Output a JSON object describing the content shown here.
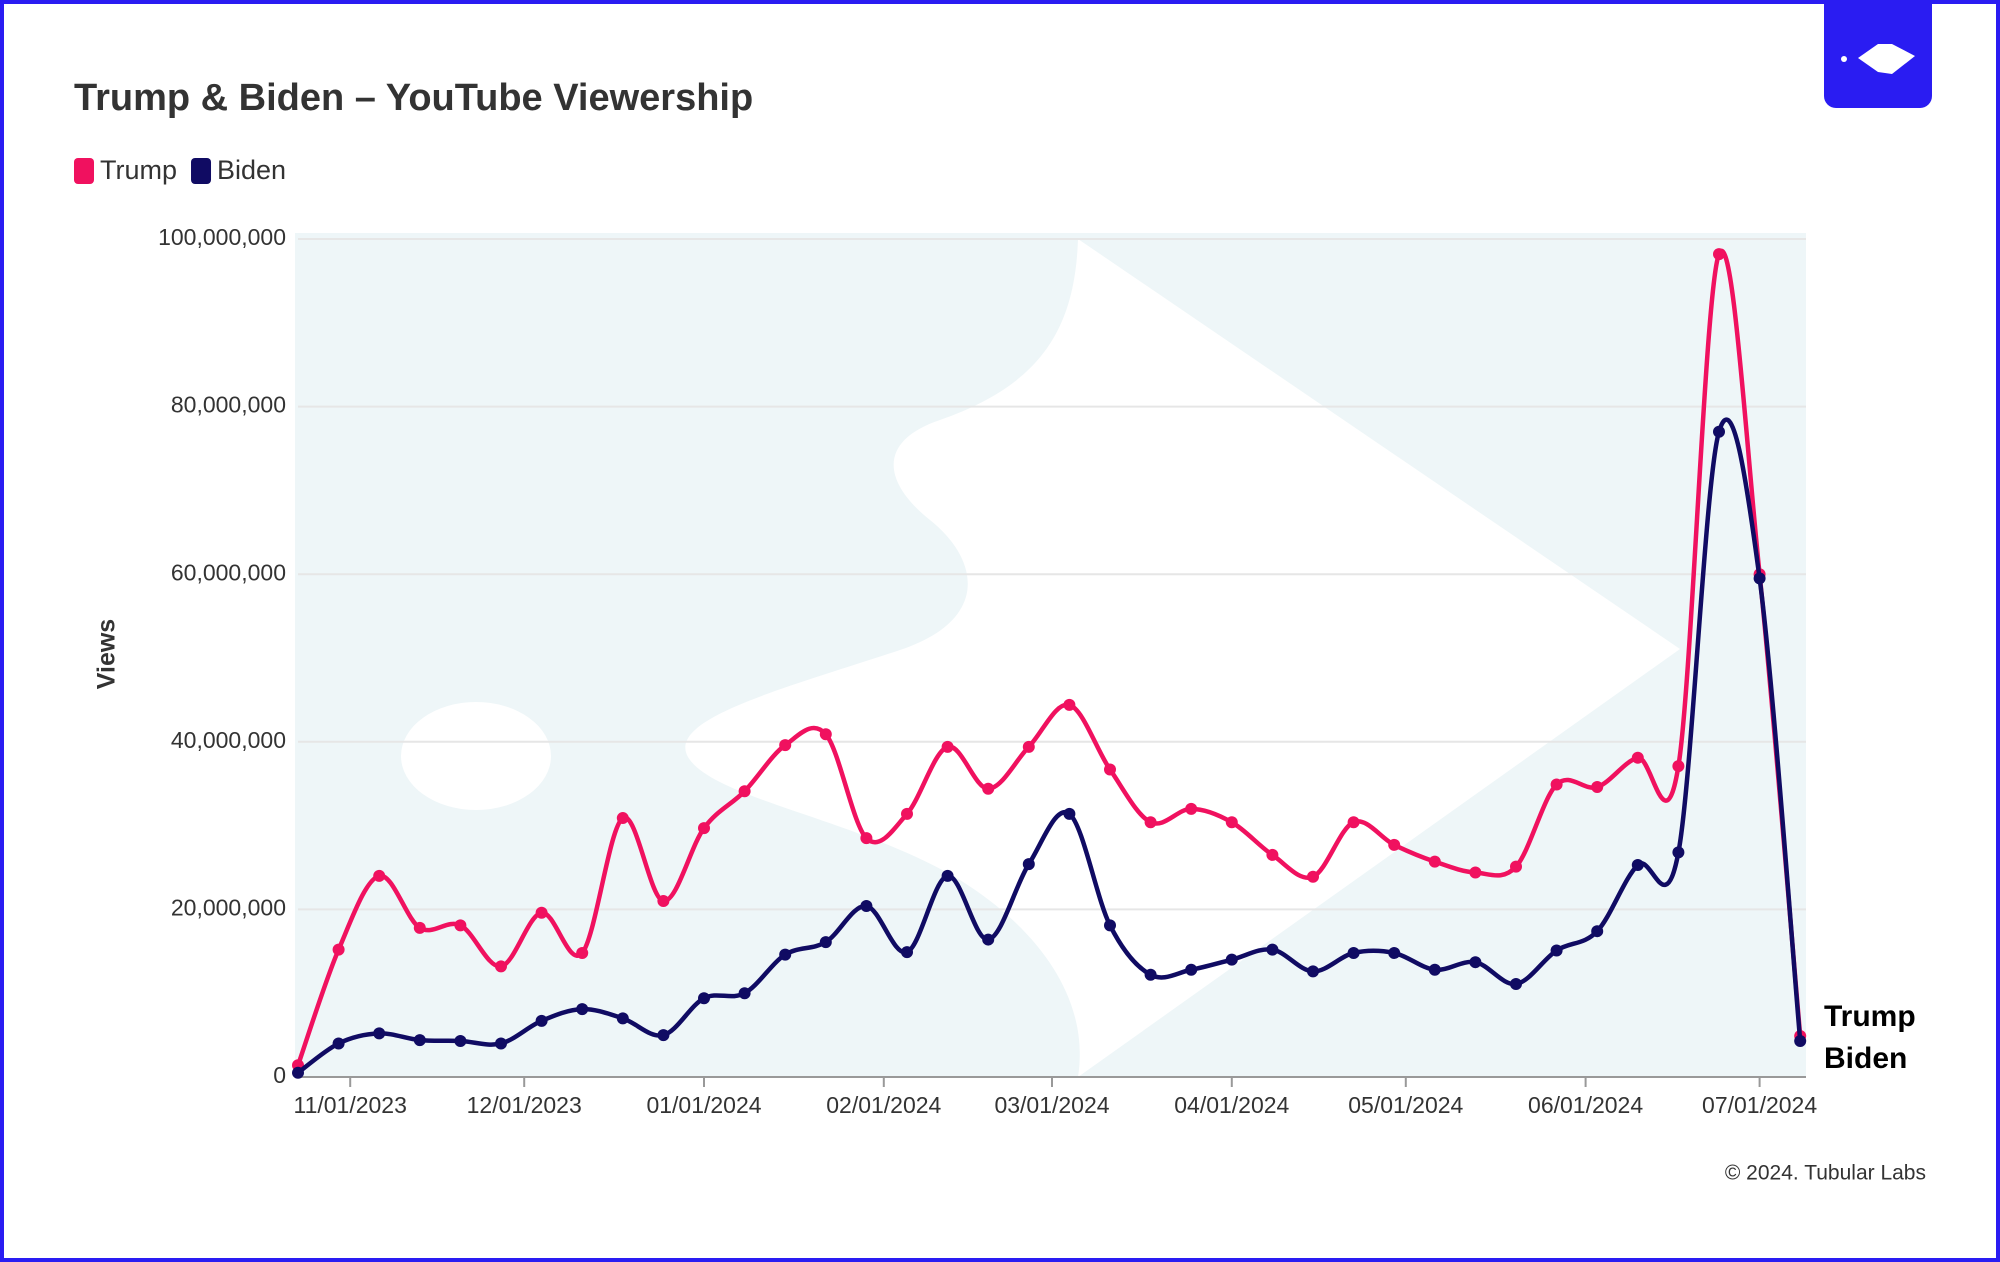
{
  "chart_data": {
    "type": "line",
    "title": "Trump & Biden – YouTube Viewership",
    "y_label": "Views",
    "footer": "© 2024. Tubular Labs",
    "x": [
      "10/23/2023",
      "10/30/2023",
      "11/06/2023",
      "11/13/2023",
      "11/20/2023",
      "11/27/2023",
      "12/04/2023",
      "12/11/2023",
      "12/18/2023",
      "12/25/2023",
      "01/01/2024",
      "01/08/2024",
      "01/15/2024",
      "01/22/2024",
      "01/29/2024",
      "02/05/2024",
      "02/12/2024",
      "02/19/2024",
      "02/26/2024",
      "03/04/2024",
      "03/11/2024",
      "03/18/2024",
      "03/25/2024",
      "04/01/2024",
      "04/08/2024",
      "04/15/2024",
      "04/22/2024",
      "04/29/2024",
      "05/06/2024",
      "05/13/2024",
      "05/20/2024",
      "05/27/2024",
      "06/03/2024",
      "06/10/2024",
      "06/17/2024",
      "06/24/2024",
      "07/01/2024",
      "07/08/2024"
    ],
    "series": [
      {
        "name": "Trump",
        "color": "#f0115f",
        "values": [
          1400000,
          15200000,
          24000000,
          17800000,
          18100000,
          13200000,
          19600000,
          14800000,
          30900000,
          21000000,
          29700000,
          34100000,
          39600000,
          40900000,
          28500000,
          31400000,
          39400000,
          34400000,
          39400000,
          44400000,
          36700000,
          30400000,
          32000000,
          30400000,
          26500000,
          23900000,
          30400000,
          27700000,
          25700000,
          24400000,
          25100000,
          34900000,
          34600000,
          38100000,
          37100000,
          98200000,
          60000000,
          4900000
        ]
      },
      {
        "name": "Biden",
        "color": "#100b63",
        "values": [
          500000,
          4000000,
          5200000,
          4400000,
          4300000,
          4000000,
          6700000,
          8100000,
          7000000,
          5000000,
          9400000,
          10000000,
          14600000,
          16100000,
          20400000,
          14900000,
          24000000,
          16400000,
          25400000,
          31400000,
          18100000,
          12200000,
          12800000,
          14000000,
          15200000,
          12600000,
          14800000,
          14800000,
          12800000,
          13700000,
          11100000,
          15100000,
          17400000,
          25300000,
          26800000,
          77000000,
          59500000,
          4300000
        ]
      }
    ],
    "xlim": [
      "10/23/2023",
      "07/09/2024"
    ],
    "xticks": [
      "11/01/2023",
      "12/01/2023",
      "01/01/2024",
      "02/01/2024",
      "03/01/2024",
      "04/01/2024",
      "05/01/2024",
      "06/01/2024",
      "07/01/2024"
    ],
    "ylim": [
      0,
      100000000
    ],
    "yticks": [
      0,
      {
        "value": 20000000,
        "label": "20,000,000"
      },
      {
        "value": 40000000,
        "label": "40,000,000"
      },
      {
        "value": 60000000,
        "label": "60,000,000"
      },
      {
        "value": 80000000,
        "label": "80,000,000"
      },
      {
        "value": 100000000,
        "label": "100,000,000"
      }
    ],
    "grid": true,
    "legend": "top-left",
    "end_labels": true
  }
}
